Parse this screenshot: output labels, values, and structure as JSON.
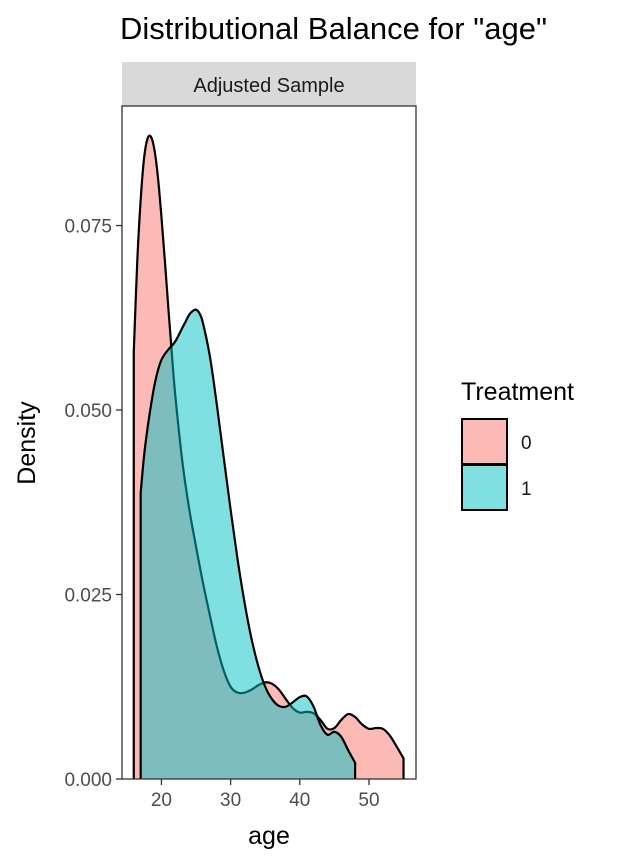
{
  "chart_data": {
    "type": "area",
    "title": "Distributional Balance for \"age\"",
    "facet_label": "Adjusted Sample",
    "xlabel": "age",
    "ylabel": "Density",
    "xlim": [
      14.3,
      56.8
    ],
    "ylim": [
      0,
      0.0912
    ],
    "x_ticks": [
      20,
      30,
      40,
      50
    ],
    "x_tick_labels": [
      "20",
      "30",
      "40",
      "50"
    ],
    "y_ticks": [
      0,
      0.025,
      0.05,
      0.075
    ],
    "y_tick_labels": [
      "0.000",
      "0.025",
      "0.050",
      "0.075"
    ],
    "grid": false,
    "legend": {
      "title": "Treatment",
      "position": "right",
      "entries": [
        {
          "label": "0",
          "color": "#F8766D"
        },
        {
          "label": "1",
          "color": "#00BFC4"
        }
      ]
    },
    "series": [
      {
        "key": "0",
        "color": "#F8766D",
        "x": [
          16.0,
          16.5,
          17.0,
          17.5,
          18.0,
          18.5,
          19.0,
          19.5,
          20.0,
          20.5,
          21.0,
          21.5,
          22.0,
          23.0,
          24.0,
          25.0,
          26.0,
          27.0,
          28.0,
          29.0,
          30.0,
          31.0,
          32.0,
          33.0,
          34.0,
          35.0,
          36.0,
          37.0,
          38.0,
          39.0,
          40.0,
          41.0,
          42.0,
          43.0,
          44.0,
          45.0,
          46.0,
          47.0,
          48.0,
          49.0,
          50.0,
          51.0,
          52.0,
          53.0,
          54.0,
          55.0
        ],
        "y": [
          0.0578,
          0.07,
          0.0785,
          0.0842,
          0.0868,
          0.087,
          0.0852,
          0.0815,
          0.0762,
          0.0702,
          0.0638,
          0.0577,
          0.052,
          0.0432,
          0.0367,
          0.0315,
          0.0266,
          0.0222,
          0.018,
          0.0147,
          0.0125,
          0.0117,
          0.0117,
          0.0121,
          0.0127,
          0.0131,
          0.0129,
          0.0121,
          0.0108,
          0.0096,
          0.009,
          0.0091,
          0.0089,
          0.008,
          0.0068,
          0.0069,
          0.008,
          0.0088,
          0.0084,
          0.0074,
          0.0068,
          0.0069,
          0.0068,
          0.0059,
          0.0044,
          0.0028
        ]
      },
      {
        "key": "1",
        "color": "#00BFC4",
        "x": [
          17.0,
          17.5,
          18.0,
          18.5,
          19.0,
          19.5,
          20.0,
          20.5,
          21.0,
          22.0,
          23.0,
          23.5,
          24.0,
          24.5,
          25.0,
          25.5,
          26.0,
          27.0,
          28.0,
          29.0,
          30.0,
          31.0,
          32.0,
          33.0,
          34.0,
          35.0,
          36.0,
          37.0,
          38.0,
          39.0,
          40.0,
          41.0,
          42.0,
          43.0,
          44.0,
          45.0,
          46.0,
          47.0,
          48.0
        ],
        "y": [
          0.0388,
          0.0439,
          0.0476,
          0.0507,
          0.0534,
          0.0554,
          0.0568,
          0.0576,
          0.0582,
          0.0593,
          0.0611,
          0.062,
          0.0629,
          0.0634,
          0.0636,
          0.0631,
          0.0618,
          0.0573,
          0.0508,
          0.0436,
          0.0365,
          0.0298,
          0.024,
          0.0191,
          0.0153,
          0.0125,
          0.0108,
          0.0099,
          0.0098,
          0.0104,
          0.0111,
          0.0112,
          0.0098,
          0.0073,
          0.006,
          0.0064,
          0.0057,
          0.0039,
          0.0022
        ]
      }
    ]
  }
}
